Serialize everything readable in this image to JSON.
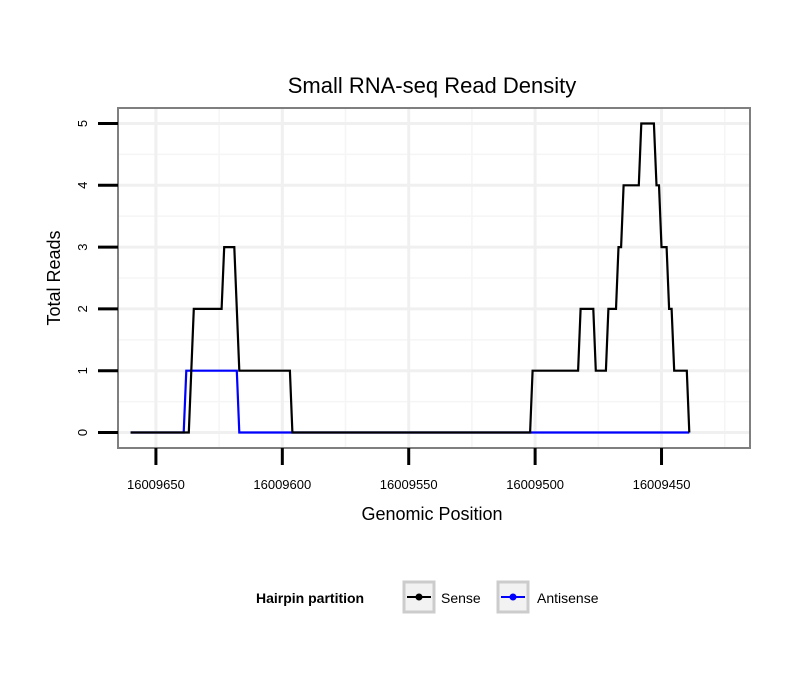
{
  "chart_data": {
    "type": "line",
    "title": "Small RNA-seq Read Density",
    "xlabel": "Genomic Position",
    "ylabel": "Total Reads",
    "xlim": [
      16009665,
      16009415
    ],
    "ylim": [
      -0.25,
      5.25
    ],
    "x_reversed": true,
    "grid": true,
    "xticks": [
      16009650,
      16009600,
      16009550,
      16009500,
      16009450
    ],
    "xtick_labels": [
      "16009650",
      "16009600",
      "16009550",
      "16009500",
      "16009450"
    ],
    "yticks": [
      0,
      1,
      2,
      3,
      4,
      5
    ],
    "ytick_labels": [
      "0",
      "1",
      "2",
      "3",
      "4",
      "5"
    ],
    "legend": {
      "title": "Hairpin partition",
      "position": "bottom",
      "entries": [
        "Sense",
        "Antisense"
      ]
    },
    "series": [
      {
        "name": "Sense",
        "color": "#000000",
        "points": [
          [
            16009660,
            0
          ],
          [
            16009637,
            0
          ],
          [
            16009635,
            2
          ],
          [
            16009624,
            2
          ],
          [
            16009623,
            3
          ],
          [
            16009619,
            3
          ],
          [
            16009617,
            1
          ],
          [
            16009597,
            1
          ],
          [
            16009596,
            0
          ],
          [
            16009502,
            0
          ],
          [
            16009501,
            1
          ],
          [
            16009483,
            1
          ],
          [
            16009482,
            2
          ],
          [
            16009477,
            2
          ],
          [
            16009476,
            1
          ],
          [
            16009472,
            1
          ],
          [
            16009471,
            2
          ],
          [
            16009468,
            2
          ],
          [
            16009467,
            3
          ],
          [
            16009466,
            3
          ],
          [
            16009465,
            4
          ],
          [
            16009459,
            4
          ],
          [
            16009458,
            5
          ],
          [
            16009453,
            5
          ],
          [
            16009452,
            4
          ],
          [
            16009451,
            4
          ],
          [
            16009450,
            3
          ],
          [
            16009448,
            3
          ],
          [
            16009447,
            2
          ],
          [
            16009446,
            2
          ],
          [
            16009445,
            1
          ],
          [
            16009440,
            1
          ],
          [
            16009439,
            0
          ]
        ]
      },
      {
        "name": "Antisense",
        "color": "#0000ff",
        "points": [
          [
            16009660,
            0
          ],
          [
            16009639,
            0
          ],
          [
            16009638,
            1
          ],
          [
            16009618,
            1
          ],
          [
            16009617,
            0
          ],
          [
            16009596,
            0
          ],
          [
            16009502,
            0
          ],
          [
            16009439,
            0
          ]
        ]
      }
    ]
  }
}
